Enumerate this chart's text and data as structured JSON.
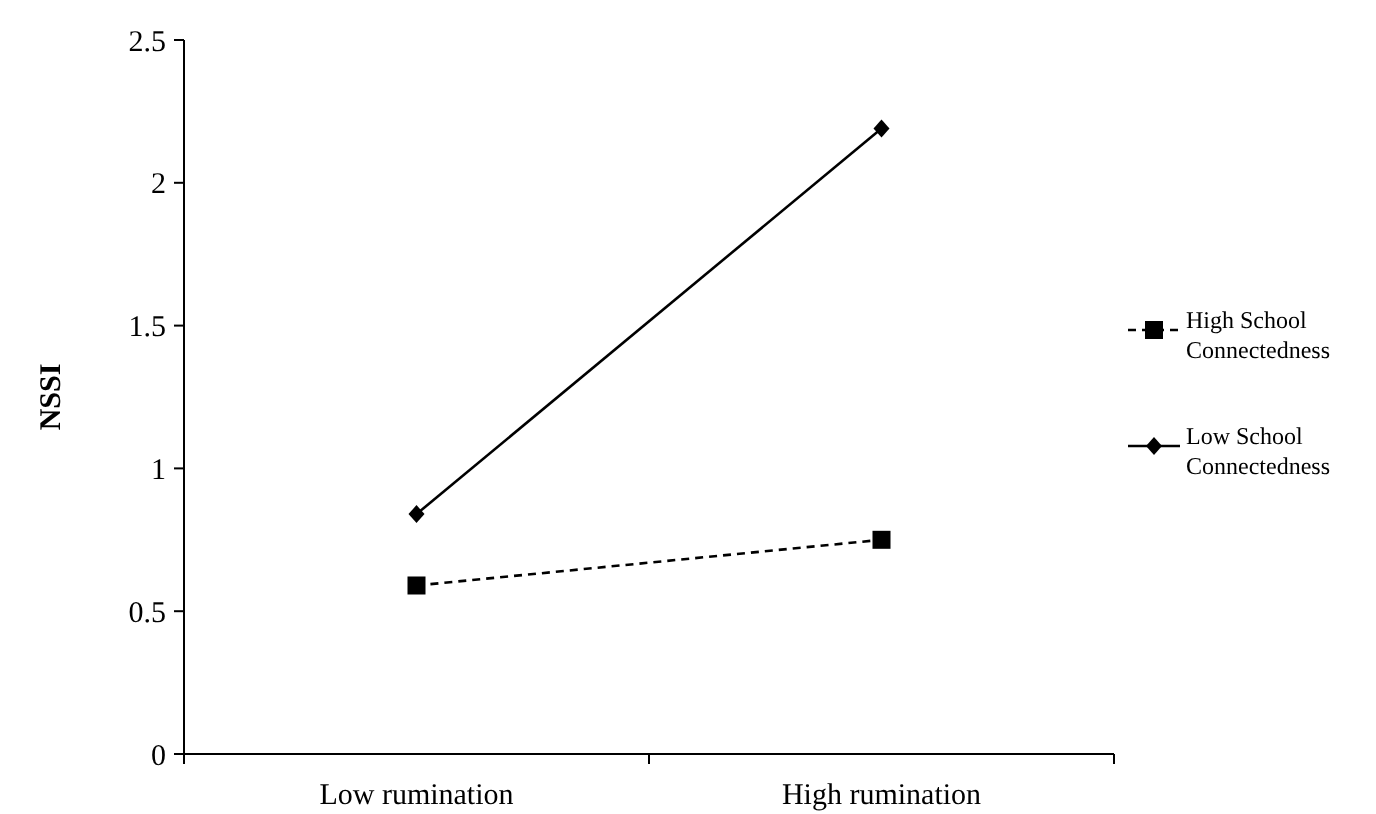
{
  "chart_data": {
    "type": "line",
    "ylabel": "NSSI",
    "categories": [
      "Low rumination",
      "High rumination"
    ],
    "series": [
      {
        "name": "High School Connectedness",
        "color": "#000000",
        "values": [
          0.59,
          0.75
        ],
        "marker": "square",
        "line_style": "dashed"
      },
      {
        "name": "Low School Connectedness",
        "color": "#000000",
        "values": [
          0.84,
          2.19
        ],
        "marker": "diamond",
        "line_style": "solid"
      }
    ],
    "ylim": [
      0,
      2.5
    ],
    "yticks": [
      0,
      0.5,
      1,
      1.5,
      2,
      2.5
    ],
    "grid": false,
    "legend": "right"
  }
}
